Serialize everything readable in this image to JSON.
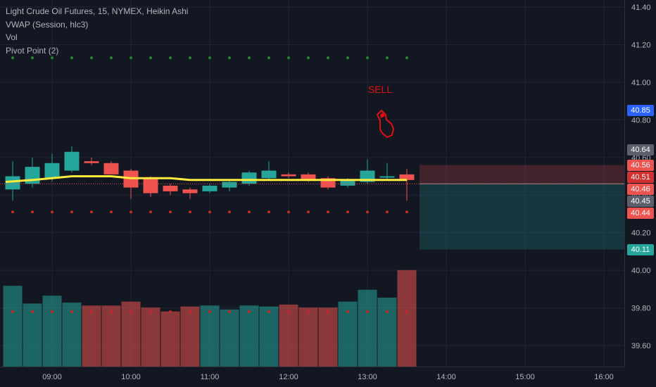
{
  "legend": {
    "title": "Light Crude Oil Futures, 15, NYMEX, Heikin Ashi",
    "indicators": [
      "VWAP (Session, hlc3)",
      "Vol",
      "Pivot Point (2)"
    ]
  },
  "annotation": {
    "text": "SELL",
    "color": "#e01010"
  },
  "colors": {
    "background": "#131722",
    "grid": "#1f2433",
    "up": "#26a69a",
    "down": "#ef5350",
    "vwap": "#ffeb3b",
    "pivot_high": "#2e7d32",
    "pivot_low": "#c62828",
    "axis_text": "#b2b5be"
  },
  "price_labels": [
    {
      "value": "40.85",
      "color": "#2962ff"
    },
    {
      "value": "40.64",
      "color": "#5d606b"
    },
    {
      "value": "40.56",
      "color": "#ef5350"
    },
    {
      "value": "40.51",
      "color": "#d32f2f"
    },
    {
      "value": "40.46",
      "color": "#ef5350"
    },
    {
      "value": "40.45",
      "color": "#5d606b"
    },
    {
      "value": "40.44",
      "color": "#ef5350"
    },
    {
      "value": "40.11",
      "color": "#26a69a"
    }
  ],
  "chart_data": {
    "type": "candlestick",
    "style": "Heikin Ashi",
    "interval_minutes": 15,
    "y_axis": {
      "ticks": [
        39.6,
        39.8,
        40.0,
        40.2,
        40.4,
        40.6,
        40.8,
        41.0,
        41.2,
        41.4
      ],
      "range": [
        39.5,
        41.5
      ]
    },
    "x_axis": {
      "ticks": [
        "09:00",
        "10:00",
        "11:00",
        "12:00",
        "13:00",
        "14:00",
        "15:00",
        "16:00"
      ]
    },
    "candles": [
      {
        "time": "08:30",
        "open": 40.43,
        "high": 40.58,
        "low": 40.37,
        "close": 40.5
      },
      {
        "time": "08:45",
        "open": 40.46,
        "high": 40.6,
        "low": 40.44,
        "close": 40.55
      },
      {
        "time": "09:00",
        "open": 40.49,
        "high": 40.62,
        "low": 40.47,
        "close": 40.57
      },
      {
        "time": "09:15",
        "open": 40.53,
        "high": 40.66,
        "low": 40.52,
        "close": 40.63
      },
      {
        "time": "09:30",
        "open": 40.58,
        "high": 40.6,
        "low": 40.56,
        "close": 40.57
      },
      {
        "time": "09:45",
        "open": 40.57,
        "high": 40.58,
        "low": 40.51,
        "close": 40.51
      },
      {
        "time": "10:00",
        "open": 40.53,
        "high": 40.54,
        "low": 40.38,
        "close": 40.44
      },
      {
        "time": "10:15",
        "open": 40.49,
        "high": 40.5,
        "low": 40.39,
        "close": 40.41
      },
      {
        "time": "10:30",
        "open": 40.45,
        "high": 40.46,
        "low": 40.4,
        "close": 40.42
      },
      {
        "time": "10:45",
        "open": 40.43,
        "high": 40.44,
        "low": 40.38,
        "close": 40.41
      },
      {
        "time": "11:00",
        "open": 40.42,
        "high": 40.46,
        "low": 40.41,
        "close": 40.45
      },
      {
        "time": "11:15",
        "open": 40.44,
        "high": 40.48,
        "low": 40.42,
        "close": 40.47
      },
      {
        "time": "11:30",
        "open": 40.46,
        "high": 40.53,
        "low": 40.45,
        "close": 40.52
      },
      {
        "time": "11:45",
        "open": 40.49,
        "high": 40.58,
        "low": 40.48,
        "close": 40.53
      },
      {
        "time": "12:00",
        "open": 40.51,
        "high": 40.52,
        "low": 40.49,
        "close": 40.5
      },
      {
        "time": "12:15",
        "open": 40.51,
        "high": 40.52,
        "low": 40.47,
        "close": 40.48
      },
      {
        "time": "12:30",
        "open": 40.49,
        "high": 40.5,
        "low": 40.43,
        "close": 40.44
      },
      {
        "time": "12:45",
        "open": 40.45,
        "high": 40.49,
        "low": 40.44,
        "close": 40.48
      },
      {
        "time": "13:00",
        "open": 40.47,
        "high": 40.59,
        "low": 40.46,
        "close": 40.53
      },
      {
        "time": "13:15",
        "open": 40.5,
        "high": 40.57,
        "low": 40.48,
        "close": 40.5
      },
      {
        "time": "13:30",
        "open": 40.51,
        "high": 40.54,
        "low": 40.37,
        "close": 40.48
      }
    ],
    "volume": [
      {
        "time": "08:30",
        "value": 82,
        "dir": "up"
      },
      {
        "time": "08:45",
        "value": 64,
        "dir": "up"
      },
      {
        "time": "09:00",
        "value": 72,
        "dir": "up"
      },
      {
        "time": "09:15",
        "value": 65,
        "dir": "up"
      },
      {
        "time": "09:30",
        "value": 62,
        "dir": "down"
      },
      {
        "time": "09:45",
        "value": 62,
        "dir": "down"
      },
      {
        "time": "10:00",
        "value": 66,
        "dir": "down"
      },
      {
        "time": "10:15",
        "value": 60,
        "dir": "down"
      },
      {
        "time": "10:30",
        "value": 56,
        "dir": "down"
      },
      {
        "time": "10:45",
        "value": 61,
        "dir": "down"
      },
      {
        "time": "11:00",
        "value": 62,
        "dir": "up"
      },
      {
        "time": "11:15",
        "value": 58,
        "dir": "up"
      },
      {
        "time": "11:30",
        "value": 62,
        "dir": "up"
      },
      {
        "time": "11:45",
        "value": 61,
        "dir": "up"
      },
      {
        "time": "12:00",
        "value": 63,
        "dir": "down"
      },
      {
        "time": "12:15",
        "value": 60,
        "dir": "down"
      },
      {
        "time": "12:30",
        "value": 60,
        "dir": "down"
      },
      {
        "time": "12:45",
        "value": 66,
        "dir": "up"
      },
      {
        "time": "13:00",
        "value": 78,
        "dir": "up"
      },
      {
        "time": "13:15",
        "value": 70,
        "dir": "up"
      },
      {
        "time": "13:30",
        "value": 98,
        "dir": "down"
      }
    ],
    "vwap": [
      40.47,
      40.48,
      40.49,
      40.5,
      40.5,
      40.5,
      40.49,
      40.49,
      40.49,
      40.48,
      40.48,
      40.48,
      40.48,
      40.48,
      40.48,
      40.48,
      40.48,
      40.48,
      40.48,
      40.48,
      40.48
    ],
    "pivot_high": 41.13,
    "pivot_low": 40.31,
    "volume_pivot_dots": 39.78,
    "current_price": 40.46,
    "position": {
      "entry": 40.46,
      "stop": 40.56,
      "target": 40.11,
      "start_time": "13:45"
    }
  }
}
